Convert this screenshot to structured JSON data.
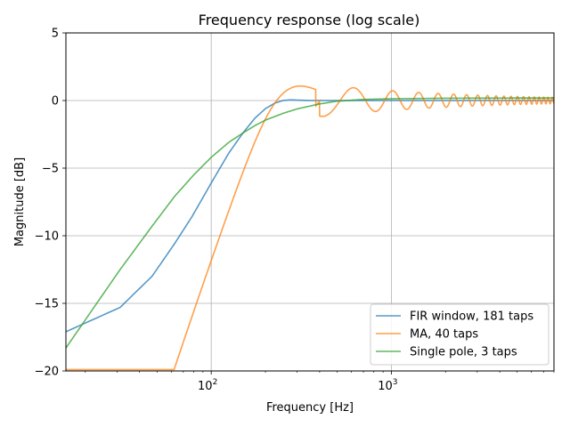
{
  "chart_data": {
    "type": "line",
    "title": "Frequency response (log scale)",
    "xlabel": "Frequency [Hz]",
    "ylabel": "Magnitude [dB]",
    "xscale": "log",
    "xlim": [
      15.6,
      8000
    ],
    "ylim": [
      -20,
      5
    ],
    "grid": true,
    "legend_position": "lower-right",
    "yticks": [
      5,
      0,
      -5,
      -10,
      -15,
      -20
    ],
    "xticks": [
      {
        "value": 100,
        "base": "10",
        "exp": "2"
      },
      {
        "value": 1000,
        "base": "10",
        "exp": "3"
      }
    ],
    "series": [
      {
        "name": "FIR window, 181 taps",
        "color": "#1f77b4",
        "x": [
          15.6,
          31.2,
          46.9,
          62.5,
          78.1,
          100,
          125,
          150,
          175,
          200,
          225,
          250,
          275,
          300,
          350,
          400,
          500,
          700,
          1000,
          2000,
          4000,
          8000
        ],
        "y": [
          -17.1,
          -15.3,
          -13.0,
          -10.6,
          -8.6,
          -6.1,
          -3.9,
          -2.4,
          -1.3,
          -0.6,
          -0.2,
          0.0,
          0.05,
          0.03,
          0.0,
          0.0,
          0.0,
          0.0,
          0.0,
          0.0,
          0.0,
          0.0
        ]
      },
      {
        "name": "MA, 40 taps",
        "color": "#ff7f0e",
        "generator": "moving_average",
        "taps": 40,
        "sample_rate_hz": 16000
      },
      {
        "name": "Single pole, 3 taps",
        "color": "#2ca02c",
        "x": [
          15.6,
          31.2,
          46.9,
          62.5,
          80,
          100,
          125,
          150,
          175,
          200,
          250,
          300,
          400,
          500,
          700,
          1000,
          2000,
          4000,
          8000
        ],
        "y": [
          -18.3,
          -12.5,
          -9.3,
          -7.1,
          -5.5,
          -4.2,
          -3.1,
          -2.4,
          -1.85,
          -1.45,
          -0.95,
          -0.62,
          -0.25,
          -0.05,
          0.08,
          0.13,
          0.17,
          0.18,
          0.19
        ]
      }
    ]
  }
}
